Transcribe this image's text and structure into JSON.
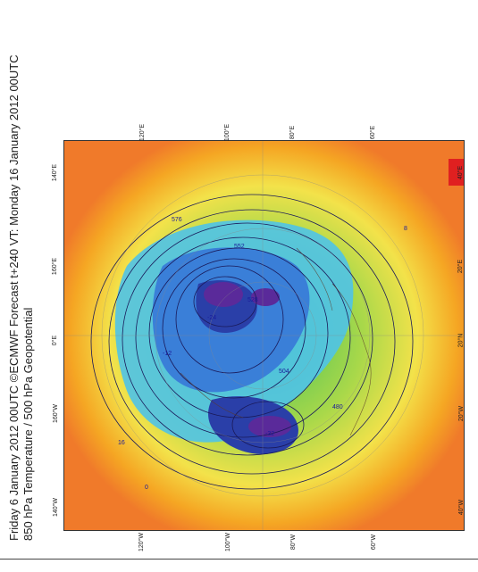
{
  "header": {
    "line1": "Friday 6 January 2012 00UTC ©ECMWF Forecast t+240 VT: Monday 16 January 2012 00UTC",
    "line2": "850 hPa Temperature / 500 hPa Geopotential"
  },
  "map": {
    "projection": "polar-stereographic",
    "hemisphere": "northern",
    "colors": {
      "warm_outer": "#f07a2a",
      "orange": "#f5a623",
      "yellow": "#f3e24a",
      "light_green": "#a8d84a",
      "green": "#3fbf5a",
      "cyan": "#4fc3e8",
      "blue": "#3a7fd8",
      "deep_blue": "#2a3fa8",
      "purple": "#5a2a9a",
      "red": "#e02020",
      "contour": "#1a1a5a"
    },
    "top_labels": [
      "120°E",
      "100°E",
      "80°E",
      "60°E"
    ],
    "bottom_labels": [
      "120°W",
      "100°W",
      "80°W",
      "60°W"
    ],
    "left_labels": [
      "140°E",
      "160°E",
      "0°E",
      "160°W",
      "140°W"
    ],
    "right_labels": [
      "40°E",
      "20°E",
      "20°N",
      "20°W",
      "40°W"
    ],
    "contour_labels": [
      "576",
      "552",
      "528",
      "504",
      "480",
      "-24",
      "-32",
      "-12",
      "16",
      "8",
      "0"
    ]
  }
}
